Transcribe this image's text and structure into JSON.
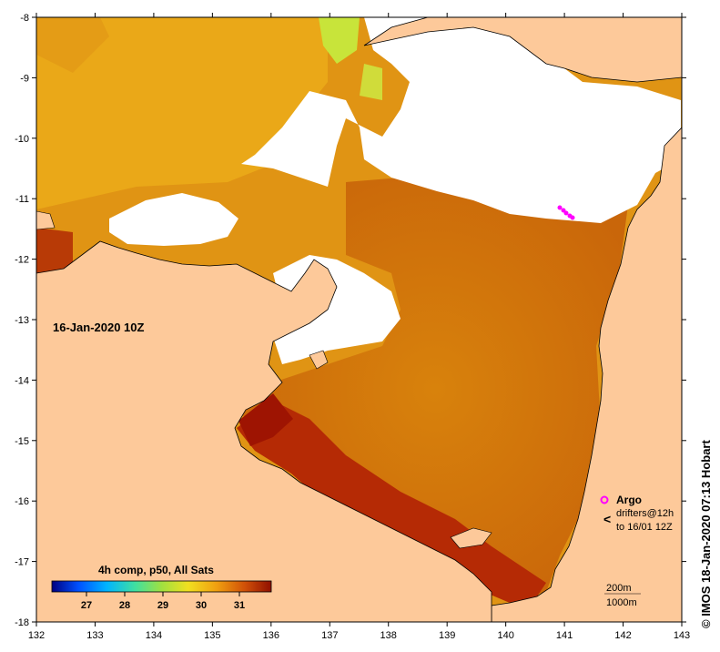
{
  "map": {
    "timestamp": "16-Jan-2020 10Z",
    "lon_ticks": [
      "132",
      "133",
      "134",
      "135",
      "136",
      "137",
      "138",
      "139",
      "140",
      "141",
      "142",
      "143"
    ],
    "lat_ticks": [
      "-8",
      "-9",
      "-10",
      "-11",
      "-12",
      "-13",
      "-14",
      "-15",
      "-16",
      "-17",
      "-18"
    ],
    "lon_range": [
      132,
      143
    ],
    "lat_range": [
      -18,
      -8
    ]
  },
  "colorbar": {
    "title": "4h comp, p50, All Sats",
    "ticks": [
      "27",
      "28",
      "29",
      "30",
      "31"
    ]
  },
  "legend": {
    "argo_label": "Argo",
    "drifters_line1": "drifters@12h",
    "drifters_line2": "to 16/01 12Z",
    "argo_color": "#ff00ff"
  },
  "scale": {
    "line1": "200m",
    "line2": "1000m"
  },
  "credit": "© IMOS 18-Jan-2020 07:13 Hobart",
  "colors": {
    "land": "#fdc99a",
    "cloud": "#ffffff",
    "sst_warm": "#dd7a0a",
    "sst_hot": "#9e1402",
    "sst_cool": "#e8b414",
    "sst_green": "#c8e43a"
  }
}
